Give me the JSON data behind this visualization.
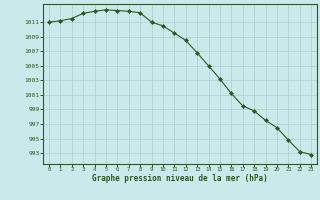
{
  "x": [
    0,
    1,
    2,
    3,
    4,
    5,
    6,
    7,
    8,
    9,
    10,
    11,
    12,
    13,
    14,
    15,
    16,
    17,
    18,
    19,
    20,
    21,
    22,
    23
  ],
  "y": [
    1011.0,
    1011.2,
    1011.5,
    1012.2,
    1012.5,
    1012.7,
    1012.6,
    1012.5,
    1012.3,
    1011.0,
    1010.5,
    1009.5,
    1008.5,
    1006.8,
    1005.0,
    1003.2,
    1001.2,
    999.5,
    998.8,
    997.5,
    996.5,
    994.8,
    993.2,
    992.8
  ],
  "line_color": "#2d5a1b",
  "marker": "D",
  "marker_size": 2,
  "background_color": "#c8eaea",
  "grid_color": "#b0cccc",
  "text_color": "#2d5a1b",
  "xlabel": "Graphe pression niveau de la mer (hPa)",
  "ylim": [
    991.5,
    1013.5
  ],
  "yticks": [
    993,
    995,
    997,
    999,
    1001,
    1003,
    1005,
    1007,
    1009,
    1011
  ],
  "xlim": [
    -0.5,
    23.5
  ],
  "xticks": [
    0,
    1,
    2,
    3,
    4,
    5,
    6,
    7,
    8,
    9,
    10,
    11,
    12,
    13,
    14,
    15,
    16,
    17,
    18,
    19,
    20,
    21,
    22,
    23
  ]
}
